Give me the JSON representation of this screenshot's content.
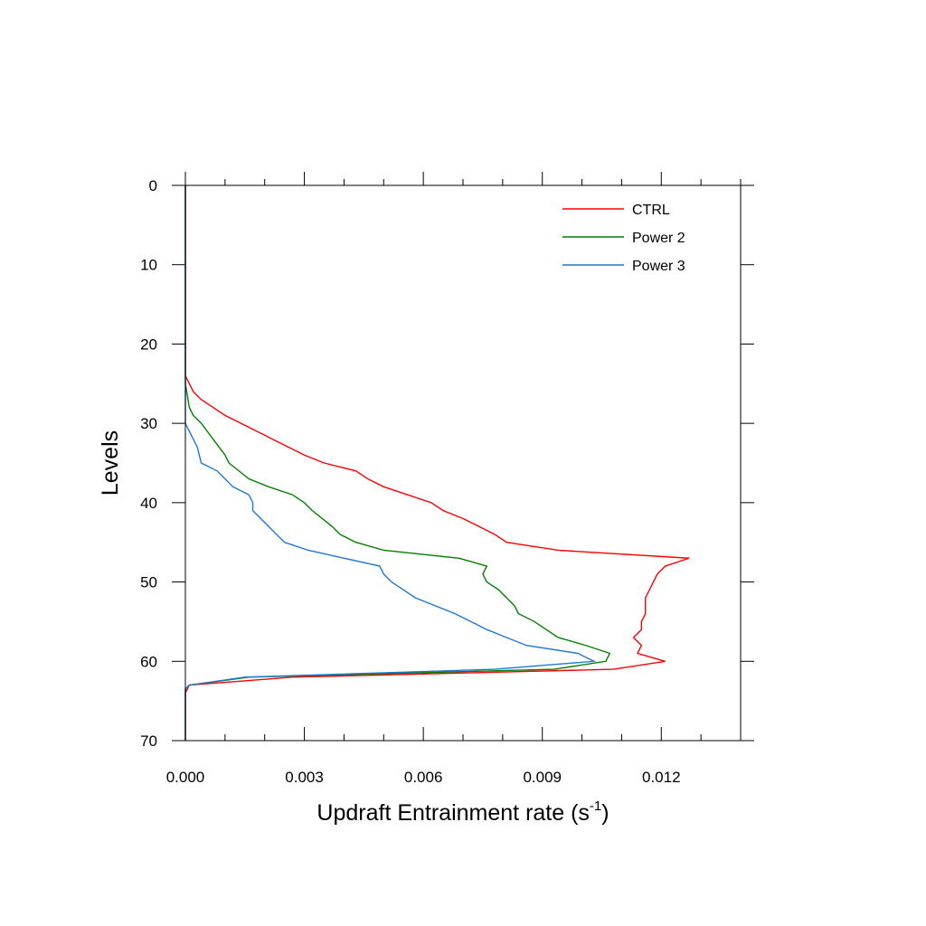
{
  "chart_data": {
    "type": "line",
    "title": "",
    "xlabel": "Updraft Entrainment rate (s",
    "xlabel_sup": "-1",
    "xlabel_close": ")",
    "ylabel": "Levels",
    "xlim": [
      0,
      0.014
    ],
    "ylim": [
      70,
      0
    ],
    "y_inverted": true,
    "x_ticks": [
      0,
      0.003,
      0.006,
      0.009,
      0.012
    ],
    "x_tick_labels": [
      "0.000",
      "0.003",
      "0.006",
      "0.009",
      "0.012"
    ],
    "x_minor_step": 0.001,
    "y_ticks": [
      0,
      10,
      20,
      30,
      40,
      50,
      60,
      70
    ],
    "y_tick_labels": [
      "0",
      "10",
      "20",
      "30",
      "40",
      "50",
      "60",
      "70"
    ],
    "grid": false,
    "legend_position": "top-right",
    "series": [
      {
        "name": "CTRL",
        "color": "#ff0000",
        "points": [
          [
            0,
            0
          ],
          [
            0,
            24
          ],
          [
            0.0001,
            25
          ],
          [
            0.0002,
            26
          ],
          [
            0.0004,
            27
          ],
          [
            0.0007,
            28
          ],
          [
            0.001,
            29
          ],
          [
            0.0014,
            30
          ],
          [
            0.0018,
            31
          ],
          [
            0.0022,
            32
          ],
          [
            0.0026,
            33
          ],
          [
            0.003,
            34
          ],
          [
            0.0035,
            35
          ],
          [
            0.0043,
            36
          ],
          [
            0.0046,
            37
          ],
          [
            0.005,
            38
          ],
          [
            0.0056,
            39
          ],
          [
            0.0062,
            40
          ],
          [
            0.0065,
            41
          ],
          [
            0.007,
            42
          ],
          [
            0.0074,
            43
          ],
          [
            0.0078,
            44
          ],
          [
            0.0081,
            45
          ],
          [
            0.0094,
            46
          ],
          [
            0.0127,
            47
          ],
          [
            0.0121,
            48
          ],
          [
            0.0119,
            49
          ],
          [
            0.0118,
            50
          ],
          [
            0.0117,
            51
          ],
          [
            0.0116,
            52
          ],
          [
            0.0116,
            53
          ],
          [
            0.0116,
            54
          ],
          [
            0.0115,
            55
          ],
          [
            0.0115,
            56
          ],
          [
            0.0113,
            57
          ],
          [
            0.0115,
            58
          ],
          [
            0.0114,
            59
          ],
          [
            0.0121,
            60
          ],
          [
            0.0108,
            61
          ],
          [
            0.0027,
            62
          ],
          [
            0.0001,
            63
          ],
          [
            0,
            64
          ],
          [
            0,
            65
          ],
          [
            0,
            70
          ]
        ]
      },
      {
        "name": "Power 2",
        "color": "#008000",
        "points": [
          [
            0,
            0
          ],
          [
            0,
            25
          ],
          [
            0.0001,
            28
          ],
          [
            0.0002,
            29
          ],
          [
            0.0004,
            30
          ],
          [
            0.0007,
            32
          ],
          [
            0.001,
            34
          ],
          [
            0.0011,
            35
          ],
          [
            0.0016,
            37
          ],
          [
            0.0021,
            38
          ],
          [
            0.0027,
            39
          ],
          [
            0.003,
            40
          ],
          [
            0.0032,
            41
          ],
          [
            0.0037,
            43
          ],
          [
            0.0039,
            44
          ],
          [
            0.0043,
            45
          ],
          [
            0.005,
            46
          ],
          [
            0.0069,
            47
          ],
          [
            0.0076,
            48
          ],
          [
            0.0075,
            49
          ],
          [
            0.0076,
            50
          ],
          [
            0.0079,
            51
          ],
          [
            0.0081,
            52
          ],
          [
            0.0083,
            53
          ],
          [
            0.0084,
            54
          ],
          [
            0.0088,
            55
          ],
          [
            0.0091,
            56
          ],
          [
            0.0094,
            57
          ],
          [
            0.0101,
            58
          ],
          [
            0.0107,
            59
          ],
          [
            0.0106,
            60
          ],
          [
            0.0093,
            61
          ],
          [
            0.0016,
            62
          ],
          [
            0.0001,
            63
          ],
          [
            0,
            63.5
          ],
          [
            0,
            70
          ]
        ]
      },
      {
        "name": "Power 3",
        "color": "#1f77d4",
        "points": [
          [
            0,
            0
          ],
          [
            0,
            25
          ],
          [
            0,
            30
          ],
          [
            0.0001,
            31
          ],
          [
            0.0002,
            32
          ],
          [
            0.0003,
            33
          ],
          [
            0.0004,
            35
          ],
          [
            0.0008,
            36
          ],
          [
            0.001,
            37
          ],
          [
            0.0012,
            38
          ],
          [
            0.0016,
            39
          ],
          [
            0.0017,
            40
          ],
          [
            0.0017,
            41
          ],
          [
            0.0019,
            42
          ],
          [
            0.0021,
            43
          ],
          [
            0.0023,
            44
          ],
          [
            0.0025,
            45
          ],
          [
            0.0031,
            46
          ],
          [
            0.004,
            47
          ],
          [
            0.0049,
            48
          ],
          [
            0.005,
            49
          ],
          [
            0.0052,
            50
          ],
          [
            0.0055,
            51
          ],
          [
            0.0058,
            52
          ],
          [
            0.0063,
            53
          ],
          [
            0.0068,
            54
          ],
          [
            0.0072,
            55
          ],
          [
            0.0076,
            56
          ],
          [
            0.0081,
            57
          ],
          [
            0.0086,
            58
          ],
          [
            0.0099,
            59
          ],
          [
            0.0103,
            60
          ],
          [
            0.0078,
            61
          ],
          [
            0.0015,
            62
          ],
          [
            0.0001,
            63
          ],
          [
            0,
            63.5
          ],
          [
            0,
            70
          ]
        ]
      }
    ]
  }
}
